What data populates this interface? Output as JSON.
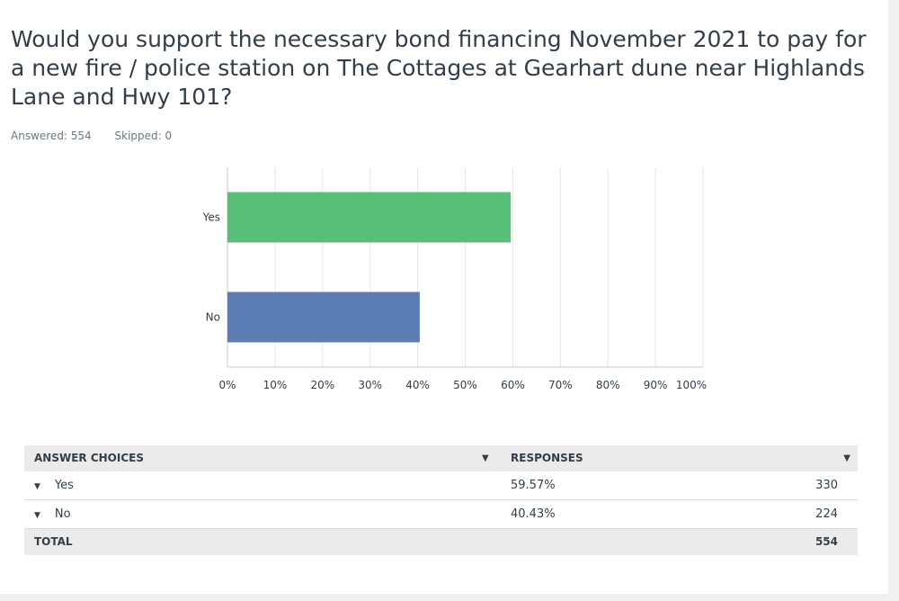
{
  "question": {
    "title": "Would you support the necessary bond financing November 2021 to pay for a new fire / police station on The Cottages at Gearhart dune near Highlands Lane and Hwy 101?",
    "answered": "Answered: 554",
    "skipped": "Skipped: 0"
  },
  "chart_data": {
    "type": "bar",
    "orientation": "horizontal",
    "categories": [
      "Yes",
      "No"
    ],
    "values": [
      59.57,
      40.43
    ],
    "colors": [
      "#57bf77",
      "#5b7db3"
    ],
    "xlim": [
      0,
      100
    ],
    "x_ticks": [
      "0%",
      "10%",
      "20%",
      "30%",
      "40%",
      "50%",
      "60%",
      "70%",
      "80%",
      "90%",
      "100%"
    ],
    "grid": true
  },
  "table": {
    "headers": {
      "choices": "ANSWER CHOICES",
      "responses": "RESPONSES"
    },
    "rows": [
      {
        "choice": "Yes",
        "percent": "59.57%",
        "count": "330"
      },
      {
        "choice": "No",
        "percent": "40.43%",
        "count": "224"
      }
    ],
    "total": {
      "label": "TOTAL",
      "count": "554"
    }
  },
  "icons": {
    "dropdown": "caret-down-icon"
  }
}
